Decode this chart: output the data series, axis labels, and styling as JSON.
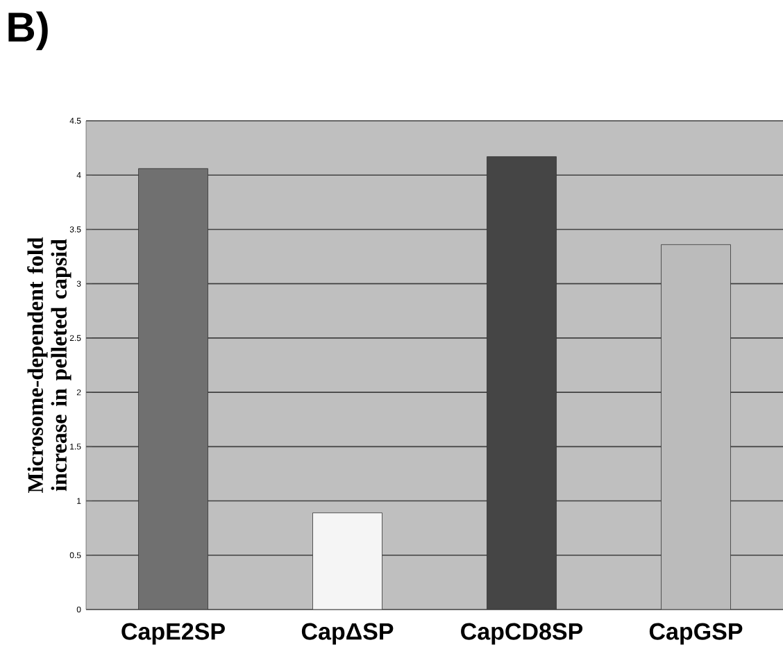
{
  "chart_data": {
    "type": "bar",
    "title": "B)",
    "ylabel": "Microsome-dependent fold increase in pelleted capsid",
    "categories": [
      "CapE2SP",
      "CapΔSP",
      "CapCD8SP",
      "CapGSP"
    ],
    "values": [
      4.06,
      0.89,
      4.17,
      3.36
    ],
    "colors": [
      "#707070",
      "#f5f5f5",
      "#454545",
      "#bbbbbb"
    ],
    "ylim": [
      0,
      4.5
    ],
    "yticks": [
      0,
      0.5,
      1,
      1.5,
      2,
      2.5,
      3,
      3.5,
      4,
      4.5
    ],
    "grid": "y"
  }
}
